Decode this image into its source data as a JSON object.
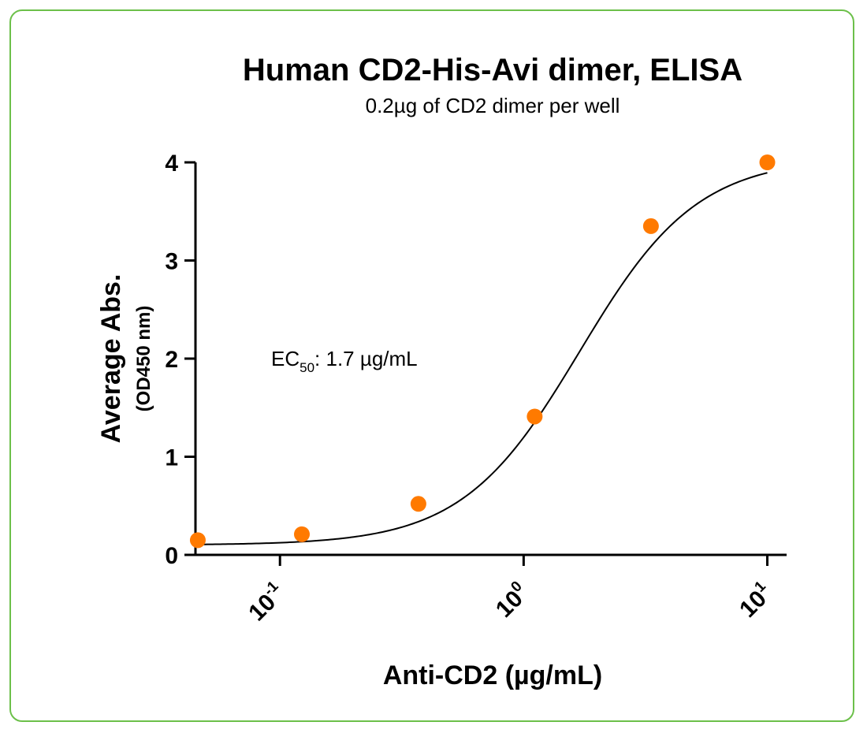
{
  "chart_data": {
    "type": "scatter",
    "title": "Human CD2-His-Avi dimer, ELISA",
    "subtitle": "0.2µg of CD2 dimer per well",
    "ylabel": "Average Abs.",
    "ylabel_unit": "(OD450 nm)",
    "xlabel": "Anti-CD2 (µg/mL)",
    "x_scale": "log",
    "xlim": [
      0.045,
      12
    ],
    "ylim": [
      0,
      4
    ],
    "y_ticks": [
      0,
      1,
      2,
      3,
      4
    ],
    "x_ticks": [
      {
        "value": 0.1,
        "base": "10",
        "exp": "-1"
      },
      {
        "value": 1,
        "base": "10",
        "exp": "0"
      },
      {
        "value": 10,
        "base": "10",
        "exp": "1"
      }
    ],
    "grid": false,
    "legend": "none",
    "annotation": {
      "prefix": "EC",
      "sub": "50",
      "suffix": ": 1.7 µg/mL"
    },
    "series": [
      {
        "x": [
          0.046,
          0.123,
          0.37,
          1.11,
          3.33,
          10.0
        ],
        "y": [
          0.15,
          0.21,
          0.52,
          1.41,
          3.35,
          4.0
        ],
        "color": "#ff7a00"
      }
    ],
    "fit": {
      "bottom": 0.1,
      "top": 4.05,
      "ec50": 1.7,
      "hill": 1.8,
      "color": "#000000"
    }
  },
  "colors": {
    "frame": "#6cc04a",
    "points": "#ff7a00"
  }
}
